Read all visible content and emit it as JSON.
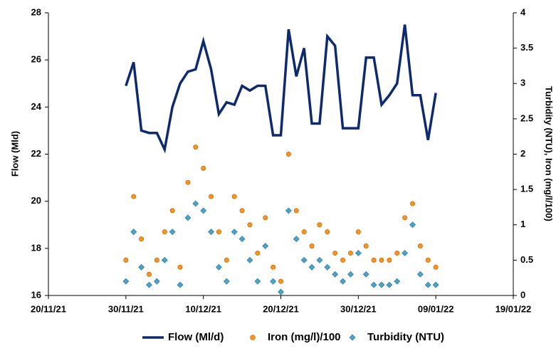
{
  "chart_data": {
    "type": "line-scatter",
    "y_label": "Flow (Mld)",
    "y2_label": "Turbidity (NTU), Iron (mg/l/100)",
    "x": [
      "2021-11-30",
      "2021-12-01",
      "2021-12-02",
      "2021-12-03",
      "2021-12-04",
      "2021-12-05",
      "2021-12-06",
      "2021-12-07",
      "2021-12-08",
      "2021-12-09",
      "2021-12-10",
      "2021-12-11",
      "2021-12-12",
      "2021-12-13",
      "2021-12-14",
      "2021-12-15",
      "2021-12-16",
      "2021-12-17",
      "2021-12-18",
      "2021-12-19",
      "2021-12-20",
      "2021-12-21",
      "2021-12-22",
      "2021-12-23",
      "2021-12-24",
      "2021-12-25",
      "2021-12-26",
      "2021-12-27",
      "2021-12-28",
      "2021-12-29",
      "2021-12-30",
      "2021-12-31",
      "2022-01-01",
      "2022-01-02",
      "2022-01-03",
      "2022-01-04",
      "2022-01-05",
      "2022-01-06",
      "2022-01-07",
      "2022-01-08",
      "2022-01-09"
    ],
    "series": [
      {
        "name": "Flow (Ml/d)",
        "color": "#0d2a6e",
        "kind": "line",
        "axis": "y",
        "values": [
          24.9,
          25.9,
          23.0,
          22.9,
          22.9,
          22.2,
          24.0,
          25.0,
          25.5,
          25.6,
          26.8,
          25.6,
          23.7,
          24.2,
          24.1,
          24.9,
          24.7,
          24.9,
          24.9,
          22.8,
          22.8,
          27.3,
          25.3,
          26.5,
          23.3,
          23.3,
          27.0,
          26.6,
          23.1,
          23.1,
          23.1,
          26.1,
          26.1,
          24.1,
          24.5,
          25.0,
          27.5,
          24.5,
          24.5,
          22.6,
          24.6
        ]
      },
      {
        "name": "Iron (mg/l)/100",
        "color": "#f7941d",
        "kind": "circle",
        "axis": "y2",
        "values": [
          0.5,
          1.4,
          0.8,
          0.3,
          0.5,
          0.9,
          1.2,
          0.4,
          1.6,
          2.1,
          1.8,
          1.4,
          0.9,
          0.5,
          1.4,
          1.2,
          1.0,
          0.6,
          1.1,
          0.4,
          0.2,
          2.0,
          1.2,
          0.9,
          0.7,
          1.0,
          0.9,
          0.6,
          0.5,
          0.6,
          0.9,
          0.7,
          0.5,
          0.5,
          0.5,
          0.6,
          1.1,
          1.3,
          0.7,
          0.5,
          0.4
        ]
      },
      {
        "name": "Turbidity (NTU)",
        "color": "#4ba3c7",
        "kind": "diamond",
        "axis": "y2",
        "values": [
          0.2,
          0.9,
          0.4,
          0.15,
          0.2,
          0.5,
          0.9,
          0.15,
          1.1,
          1.3,
          1.2,
          0.9,
          0.4,
          0.2,
          0.9,
          0.8,
          0.5,
          0.2,
          0.7,
          0.2,
          0.05,
          1.2,
          0.8,
          0.5,
          0.4,
          0.5,
          0.4,
          0.3,
          0.2,
          0.3,
          0.6,
          0.3,
          0.15,
          0.15,
          0.15,
          0.2,
          0.6,
          1.0,
          0.3,
          0.15,
          0.15
        ]
      }
    ],
    "xlim": [
      "2021-11-20",
      "2022-01-19"
    ],
    "xticks": [
      {
        "value": "2021-11-20",
        "label": "20/11/21"
      },
      {
        "value": "2021-11-30",
        "label": "30/11/21"
      },
      {
        "value": "2021-12-10",
        "label": "10/12/21"
      },
      {
        "value": "2021-12-20",
        "label": "20/12/21"
      },
      {
        "value": "2021-12-30",
        "label": "30/12/21"
      },
      {
        "value": "2022-01-09",
        "label": "09/01/22"
      },
      {
        "value": "2022-01-19",
        "label": "19/01/22"
      }
    ],
    "ylim": [
      16,
      28
    ],
    "yticks": [
      16,
      18,
      20,
      22,
      24,
      26,
      28
    ],
    "y2lim": [
      0,
      4
    ],
    "y2ticks": [
      0,
      0.5,
      1,
      1.5,
      2,
      2.5,
      3,
      3.5,
      4
    ],
    "legend": "bottom"
  }
}
